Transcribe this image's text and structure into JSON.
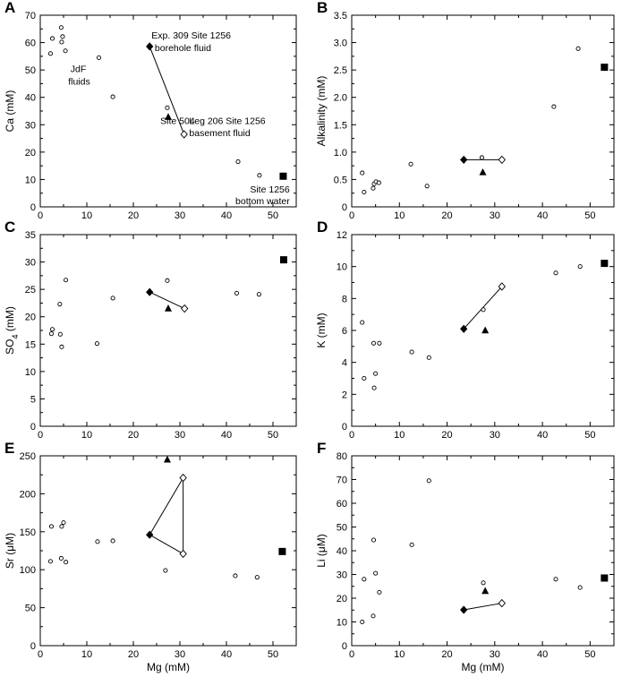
{
  "chart_data": [
    {
      "type": "scatter",
      "panel": "A",
      "xlabel": "",
      "ylabel": "Ca (mM)",
      "xlim": [
        0,
        55
      ],
      "ylim": [
        0,
        70
      ],
      "xticks": [
        "0",
        "10",
        "20",
        "30",
        "40",
        "50"
      ],
      "yticks": [
        "0",
        "10",
        "20",
        "30",
        "40",
        "50",
        "60",
        "70"
      ],
      "series": [
        {
          "marker": "open-circle",
          "points": [
            [
              2.2,
              56
            ],
            [
              2.6,
              61.5
            ],
            [
              4.5,
              65.5
            ],
            [
              4.6,
              60.2
            ],
            [
              4.8,
              62.2
            ],
            [
              5.4,
              57
            ],
            [
              12.6,
              54.5
            ],
            [
              15.6,
              40.2
            ],
            [
              27.3,
              36.2
            ],
            [
              42.5,
              16.5
            ],
            [
              47.1,
              11.5
            ]
          ]
        },
        {
          "marker": "filled-diamond",
          "points": [
            [
              23.5,
              58.6
            ]
          ]
        },
        {
          "marker": "open-diamond",
          "points": [
            [
              30.9,
              26.5
            ]
          ]
        },
        {
          "marker": "filled-triangle",
          "points": [
            [
              27.5,
              32.8
            ]
          ]
        },
        {
          "marker": "filled-square",
          "points": [
            [
              52.2,
              11.2
            ]
          ]
        }
      ],
      "lines": [
        [
          [
            23.5,
            58.6
          ],
          [
            30.9,
            26.5
          ]
        ]
      ],
      "annotations": [
        {
          "text": "Exp. 309 Site 1256",
          "x": 23.9,
          "y": 62.8
        },
        {
          "text": "borehole fluid",
          "x": 24.6,
          "y": 58.3
        },
        {
          "text": "JdF",
          "x": 6.5,
          "y": 50.5
        },
        {
          "text": "fluids",
          "x": 6.0,
          "y": 46.0
        },
        {
          "text": "Leg 206 Site 1256",
          "x": 32.0,
          "y": 31.6
        },
        {
          "text": "basement fluid",
          "x": 32.0,
          "y": 27.1
        },
        {
          "text": "Site 504",
          "x": 25.8,
          "y": 31.6
        },
        {
          "text": "Site 1256",
          "x": 53.6,
          "y": 6.6
        },
        {
          "text": "bottom water",
          "x": 53.6,
          "y": 2.3
        }
      ]
    },
    {
      "type": "scatter",
      "panel": "B",
      "xlabel": "",
      "ylabel": "Alkalinity (mM)",
      "xlim": [
        0,
        55
      ],
      "ylim": [
        0,
        3.5
      ],
      "xticks": [
        "0",
        "10",
        "20",
        "30",
        "40",
        "50"
      ],
      "yticks": [
        "0",
        "0.5",
        "1.0",
        "1.5",
        "2.0",
        "2.5",
        "3.0",
        "3.5"
      ],
      "series": [
        {
          "marker": "open-circle",
          "points": [
            [
              2.2,
              0.62
            ],
            [
              2.6,
              0.27
            ],
            [
              4.5,
              0.34
            ],
            [
              4.7,
              0.42
            ],
            [
              5.1,
              0.46
            ],
            [
              5.7,
              0.44
            ],
            [
              12.4,
              0.78
            ],
            [
              15.8,
              0.38
            ],
            [
              27.3,
              0.9
            ],
            [
              42.4,
              1.83
            ],
            [
              47.5,
              2.89
            ]
          ]
        },
        {
          "marker": "filled-diamond",
          "points": [
            [
              23.5,
              0.86
            ]
          ]
        },
        {
          "marker": "open-diamond",
          "points": [
            [
              31.5,
              0.86
            ]
          ]
        },
        {
          "marker": "filled-triangle",
          "points": [
            [
              27.5,
              0.63
            ]
          ]
        },
        {
          "marker": "filled-square",
          "points": [
            [
              53.0,
              2.55
            ]
          ]
        }
      ],
      "lines": [
        [
          [
            23.5,
            0.86
          ],
          [
            31.5,
            0.86
          ]
        ]
      ],
      "annotations": []
    },
    {
      "type": "scatter",
      "panel": "C",
      "xlabel": "",
      "ylabel": "SO4 (mM)",
      "xlim": [
        0,
        55
      ],
      "ylim": [
        0,
        35
      ],
      "xticks": [
        "0",
        "10",
        "20",
        "30",
        "40",
        "50"
      ],
      "yticks": [
        "0",
        "5",
        "10",
        "15",
        "20",
        "25",
        "30",
        "35"
      ],
      "series": [
        {
          "marker": "open-circle",
          "points": [
            [
              2.4,
              16.9
            ],
            [
              2.6,
              17.7
            ],
            [
              4.2,
              22.3
            ],
            [
              4.3,
              16.8
            ],
            [
              4.6,
              14.5
            ],
            [
              5.5,
              26.7
            ],
            [
              12.2,
              15.1
            ],
            [
              15.6,
              23.4
            ],
            [
              27.3,
              26.6
            ],
            [
              42.2,
              24.3
            ],
            [
              47.0,
              24.1
            ]
          ]
        },
        {
          "marker": "filled-diamond",
          "points": [
            [
              23.5,
              24.5
            ]
          ]
        },
        {
          "marker": "open-diamond",
          "points": [
            [
              31.0,
              21.5
            ]
          ]
        },
        {
          "marker": "filled-triangle",
          "points": [
            [
              27.5,
              21.5
            ]
          ]
        },
        {
          "marker": "filled-square",
          "points": [
            [
              52.3,
              30.4
            ]
          ]
        }
      ],
      "lines": [
        [
          [
            23.5,
            24.5
          ],
          [
            31.0,
            21.5
          ]
        ]
      ],
      "annotations": []
    },
    {
      "type": "scatter",
      "panel": "D",
      "xlabel": "",
      "ylabel": "K (mM)",
      "xlim": [
        0,
        55
      ],
      "ylim": [
        0,
        12
      ],
      "xticks": [
        "0",
        "10",
        "20",
        "30",
        "40",
        "50"
      ],
      "yticks": [
        "0",
        "2",
        "4",
        "6",
        "8",
        "10",
        "12"
      ],
      "series": [
        {
          "marker": "open-circle",
          "points": [
            [
              2.2,
              6.5
            ],
            [
              2.6,
              3.0
            ],
            [
              4.6,
              5.2
            ],
            [
              4.7,
              2.4
            ],
            [
              5.0,
              3.3
            ],
            [
              5.8,
              5.2
            ],
            [
              12.6,
              4.65
            ],
            [
              16.2,
              4.3
            ],
            [
              27.6,
              7.3
            ],
            [
              42.8,
              9.6
            ],
            [
              47.9,
              10.0
            ]
          ]
        },
        {
          "marker": "filled-diamond",
          "points": [
            [
              23.5,
              6.1
            ]
          ]
        },
        {
          "marker": "open-diamond",
          "points": [
            [
              31.5,
              8.75
            ]
          ]
        },
        {
          "marker": "filled-triangle",
          "points": [
            [
              28.0,
              6.0
            ]
          ]
        },
        {
          "marker": "filled-square",
          "points": [
            [
              53.0,
              10.2
            ]
          ]
        }
      ],
      "lines": [
        [
          [
            23.5,
            6.1
          ],
          [
            31.5,
            8.75
          ]
        ]
      ],
      "annotations": []
    },
    {
      "type": "scatter",
      "panel": "E",
      "xlabel": "Mg (mM)",
      "ylabel": "Sr (μM)",
      "xlim": [
        0,
        55
      ],
      "ylim": [
        0,
        250
      ],
      "xticks": [
        "0",
        "10",
        "20",
        "30",
        "40",
        "50"
      ],
      "yticks": [
        "0",
        "50",
        "100",
        "150",
        "200",
        "250"
      ],
      "series": [
        {
          "marker": "open-circle",
          "points": [
            [
              2.2,
              111
            ],
            [
              2.4,
              157
            ],
            [
              4.5,
              115
            ],
            [
              4.6,
              157
            ],
            [
              5.0,
              162
            ],
            [
              5.5,
              110
            ],
            [
              12.3,
              137
            ],
            [
              15.6,
              138
            ],
            [
              26.9,
              99
            ],
            [
              41.9,
              92
            ],
            [
              46.6,
              90
            ]
          ]
        },
        {
          "marker": "filled-diamond",
          "points": [
            [
              23.5,
              146
            ]
          ]
        },
        {
          "marker": "open-diamond",
          "points": [
            [
              30.7,
              221
            ],
            [
              30.7,
              121
            ]
          ]
        },
        {
          "marker": "filled-triangle",
          "points": [
            [
              27.3,
              245
            ]
          ]
        },
        {
          "marker": "filled-square",
          "points": [
            [
              52.0,
              124
            ]
          ]
        }
      ],
      "lines": [
        [
          [
            23.5,
            146
          ],
          [
            30.7,
            221
          ]
        ],
        [
          [
            23.5,
            146
          ],
          [
            30.7,
            121
          ]
        ],
        [
          [
            30.7,
            221
          ],
          [
            30.7,
            121
          ]
        ]
      ],
      "annotations": []
    },
    {
      "type": "scatter",
      "panel": "F",
      "xlabel": "Mg (mM)",
      "ylabel": "Li (μM)",
      "xlim": [
        0,
        55
      ],
      "ylim": [
        0,
        80
      ],
      "xticks": [
        "0",
        "10",
        "20",
        "30",
        "40",
        "50"
      ],
      "yticks": [
        "0",
        "10",
        "20",
        "30",
        "40",
        "50",
        "60",
        "70",
        "80"
      ],
      "series": [
        {
          "marker": "open-circle",
          "points": [
            [
              2.2,
              10
            ],
            [
              2.6,
              28
            ],
            [
              4.5,
              12.5
            ],
            [
              4.6,
              44.5
            ],
            [
              5.0,
              30.5
            ],
            [
              5.8,
              22.5
            ],
            [
              12.6,
              42.5
            ],
            [
              16.2,
              69.5
            ],
            [
              27.6,
              26.5
            ],
            [
              42.8,
              28
            ],
            [
              47.9,
              24.5
            ]
          ]
        },
        {
          "marker": "filled-diamond",
          "points": [
            [
              23.5,
              15.1
            ]
          ]
        },
        {
          "marker": "open-diamond",
          "points": [
            [
              31.5,
              17.9
            ]
          ]
        },
        {
          "marker": "filled-triangle",
          "points": [
            [
              28.0,
              23
            ]
          ]
        },
        {
          "marker": "filled-square",
          "points": [
            [
              53.0,
              28.5
            ]
          ]
        }
      ],
      "lines": [
        [
          [
            23.5,
            15.1
          ],
          [
            31.5,
            17.9
          ]
        ]
      ],
      "annotations": []
    }
  ]
}
